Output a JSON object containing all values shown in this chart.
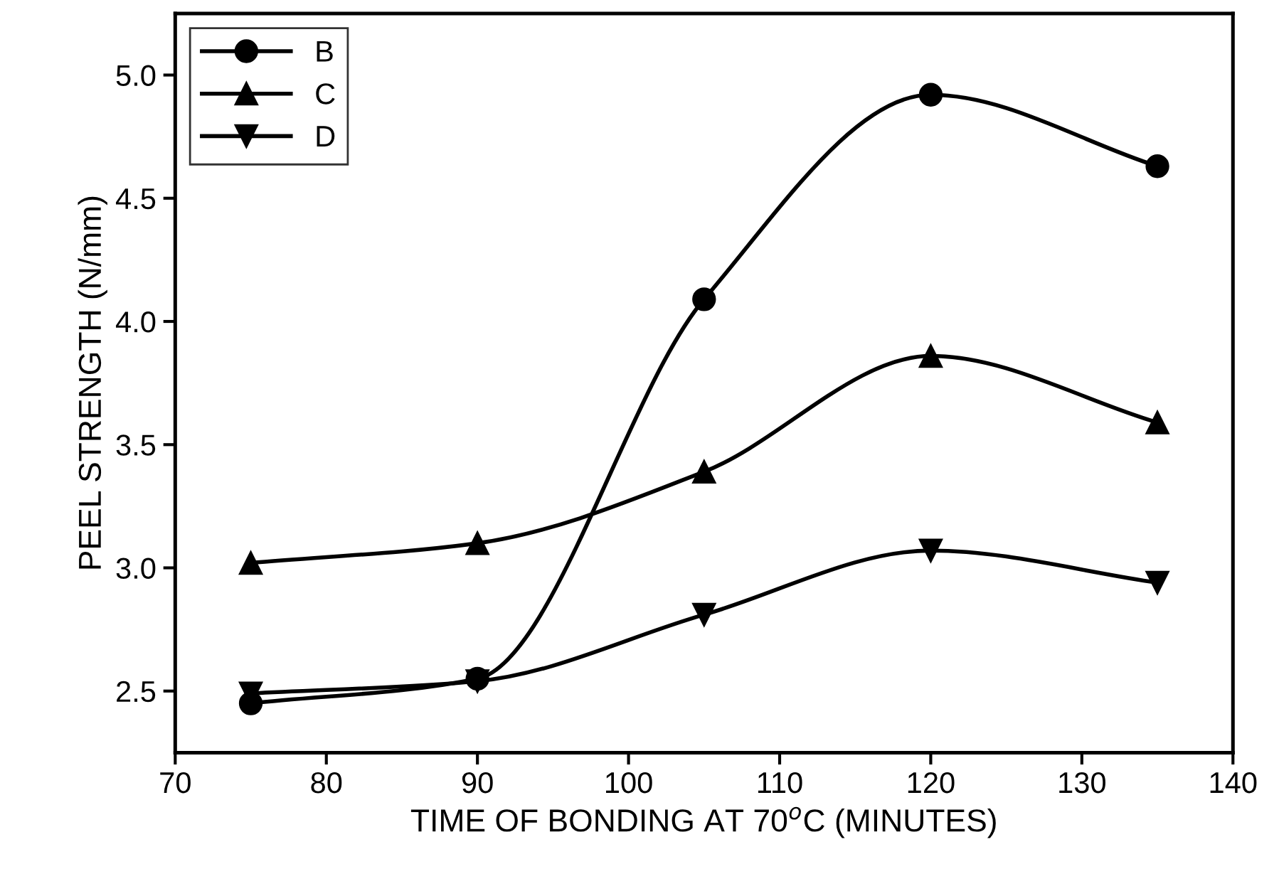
{
  "chart_data": {
    "type": "line",
    "xlabel": "TIME OF BONDING AT 70$^{o}$C (MINUTES)",
    "ylabel": "PEEL STRENGTH (N/mm)",
    "x": [
      75,
      90,
      105,
      120,
      135
    ],
    "series": [
      {
        "name": "B",
        "color": "#000000",
        "marker": "circle",
        "values": [
          2.45,
          2.55,
          4.09,
          4.92,
          4.63
        ]
      },
      {
        "name": "C",
        "color": "#000000",
        "marker": "triangle",
        "values": [
          3.02,
          3.1,
          3.39,
          3.86,
          3.59
        ]
      },
      {
        "name": "D",
        "color": "#000000",
        "marker": "triangle_down",
        "values": [
          2.49,
          2.54,
          2.81,
          3.07,
          2.94
        ]
      }
    ],
    "xlim": [
      70,
      140
    ],
    "xticks": [
      70,
      80,
      90,
      100,
      110,
      120,
      130,
      140
    ],
    "ylim": [
      2.25,
      5.25
    ],
    "yticks": [
      2.5,
      {
        "value": 3,
        "label": "3.0"
      },
      3.5,
      {
        "value": 4,
        "label": "4.0"
      },
      4.5,
      {
        "value": 5,
        "label": "5.0"
      }
    ],
    "grid": false,
    "legend": "top left",
    "line_style": "solid"
  }
}
